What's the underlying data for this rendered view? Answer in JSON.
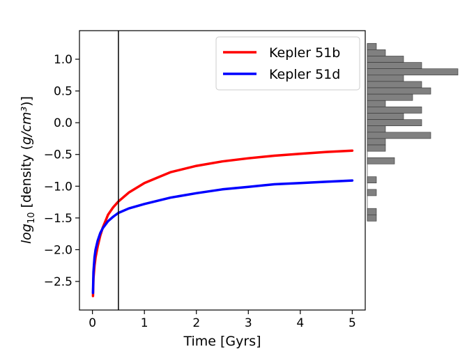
{
  "chart_data": [
    {
      "type": "line",
      "xlabel": "Time [Gyrs]",
      "ylabel_parts": {
        "log": "log",
        "sub": "10",
        "density": " [density (",
        "unit": "g/cm³",
        "close": ")]"
      },
      "xlim": [
        -0.25,
        5.25
      ],
      "ylim": [
        -2.95,
        1.45
      ],
      "x_ticks": [
        0,
        1,
        2,
        3,
        4,
        5
      ],
      "x_tick_labels": [
        "0",
        "1",
        "2",
        "3",
        "4",
        "5"
      ],
      "y_ticks": [
        -2.5,
        -2.0,
        -1.5,
        -1.0,
        -0.5,
        0.0,
        0.5,
        1.0
      ],
      "y_tick_labels": [
        "−2.5",
        "−2.0",
        "−1.5",
        "−1.0",
        "−0.5",
        "0.0",
        "0.5",
        "1.0"
      ],
      "vline_x": 0.5,
      "legend_position": "upper-right",
      "grid": false,
      "series": [
        {
          "name": "Kepler 51b",
          "color": "#ff0000",
          "x": [
            0.01,
            0.02,
            0.04,
            0.06,
            0.1,
            0.15,
            0.2,
            0.3,
            0.4,
            0.5,
            0.7,
            1.0,
            1.5,
            2.0,
            2.5,
            3.0,
            3.5,
            4.0,
            4.5,
            5.0
          ],
          "y": [
            -2.73,
            -2.45,
            -2.25,
            -2.12,
            -1.95,
            -1.78,
            -1.65,
            -1.45,
            -1.33,
            -1.24,
            -1.1,
            -0.95,
            -0.78,
            -0.68,
            -0.61,
            -0.56,
            -0.52,
            -0.49,
            -0.46,
            -0.44
          ]
        },
        {
          "name": "Kepler 51d",
          "color": "#0000ff",
          "x": [
            0.01,
            0.02,
            0.04,
            0.06,
            0.1,
            0.15,
            0.2,
            0.3,
            0.4,
            0.5,
            0.7,
            1.0,
            1.5,
            2.0,
            2.5,
            3.0,
            3.5,
            4.0,
            4.5,
            5.0
          ],
          "y": [
            -2.68,
            -2.35,
            -2.12,
            -2.0,
            -1.86,
            -1.74,
            -1.66,
            -1.55,
            -1.48,
            -1.42,
            -1.35,
            -1.28,
            -1.18,
            -1.11,
            -1.05,
            -1.01,
            -0.97,
            -0.95,
            -0.93,
            -0.91
          ]
        }
      ]
    },
    {
      "type": "bar",
      "orientation": "horizontal",
      "color": "#808080",
      "bins": [
        {
          "y_low": 1.15,
          "y_high": 1.25,
          "count": 1
        },
        {
          "y_low": 1.05,
          "y_high": 1.15,
          "count": 2
        },
        {
          "y_low": 0.95,
          "y_high": 1.05,
          "count": 4
        },
        {
          "y_low": 0.85,
          "y_high": 0.95,
          "count": 6
        },
        {
          "y_low": 0.75,
          "y_high": 0.85,
          "count": 10
        },
        {
          "y_low": 0.65,
          "y_high": 0.75,
          "count": 4
        },
        {
          "y_low": 0.55,
          "y_high": 0.65,
          "count": 6
        },
        {
          "y_low": 0.45,
          "y_high": 0.55,
          "count": 7
        },
        {
          "y_low": 0.35,
          "y_high": 0.45,
          "count": 5
        },
        {
          "y_low": 0.25,
          "y_high": 0.35,
          "count": 2
        },
        {
          "y_low": 0.15,
          "y_high": 0.25,
          "count": 6
        },
        {
          "y_low": 0.05,
          "y_high": 0.15,
          "count": 4
        },
        {
          "y_low": -0.05,
          "y_high": 0.05,
          "count": 6
        },
        {
          "y_low": -0.15,
          "y_high": -0.05,
          "count": 2
        },
        {
          "y_low": -0.25,
          "y_high": -0.15,
          "count": 7
        },
        {
          "y_low": -0.35,
          "y_high": -0.25,
          "count": 2
        },
        {
          "y_low": -0.45,
          "y_high": -0.35,
          "count": 2
        },
        {
          "y_low": -0.65,
          "y_high": -0.55,
          "count": 3
        },
        {
          "y_low": -0.95,
          "y_high": -0.85,
          "count": 1
        },
        {
          "y_low": -1.15,
          "y_high": -1.05,
          "count": 1
        },
        {
          "y_low": -1.45,
          "y_high": -1.35,
          "count": 1
        },
        {
          "y_low": -1.55,
          "y_high": -1.45,
          "count": 1
        }
      ]
    }
  ]
}
